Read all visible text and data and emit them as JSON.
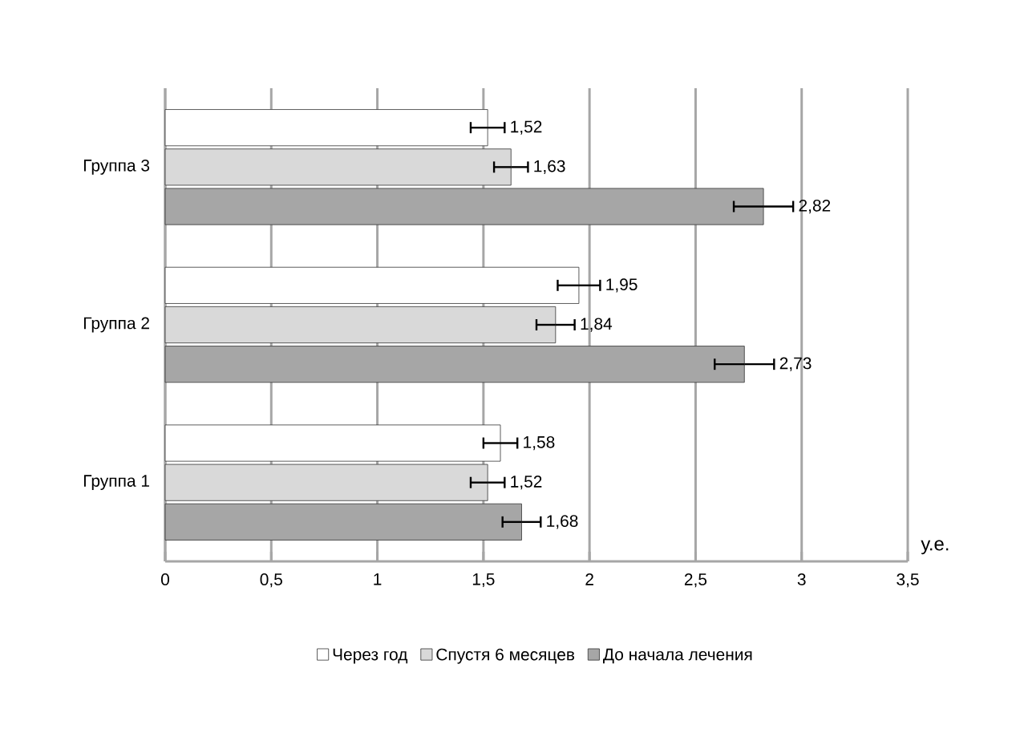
{
  "chart_data": {
    "type": "bar",
    "orientation": "horizontal",
    "xlabel": "у.е.",
    "categories": [
      "Группа 3",
      "Группа 2",
      "Группа 1"
    ],
    "series": [
      {
        "name": "Через год",
        "color": "#ffffff",
        "values": [
          1.52,
          1.95,
          1.58
        ],
        "errors": [
          0.08,
          0.1,
          0.08
        ],
        "value_labels": [
          "1,52",
          "1,95",
          "1,58"
        ]
      },
      {
        "name": "Спустя 6 месяцев",
        "color": "#d9d9d9",
        "values": [
          1.63,
          1.84,
          1.52
        ],
        "errors": [
          0.08,
          0.09,
          0.08
        ],
        "value_labels": [
          "1,63",
          "1,84",
          "1,52"
        ]
      },
      {
        "name": "До начала лечения",
        "color": "#a6a6a6",
        "values": [
          2.82,
          2.73,
          1.68
        ],
        "errors": [
          0.14,
          0.14,
          0.09
        ],
        "value_labels": [
          "2,82",
          "2,73",
          "1,68"
        ]
      }
    ],
    "xlim": [
      0,
      3.5
    ],
    "xticks": [
      0,
      {
        "value": 0.5,
        "label": "0,5"
      },
      1,
      {
        "value": 1.5,
        "label": "1,5"
      },
      2,
      {
        "value": 2.5,
        "label": "2,5"
      },
      3,
      {
        "value": 3.5,
        "label": "3,5"
      }
    ],
    "grid": "x",
    "legend": "bottom"
  }
}
